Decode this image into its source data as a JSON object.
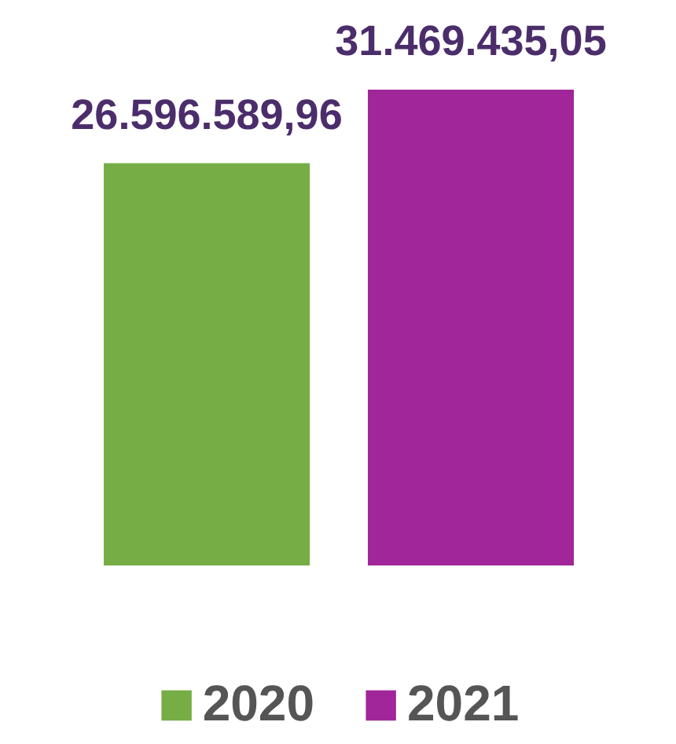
{
  "chart_data": {
    "type": "bar",
    "categories": [
      null
    ],
    "series": [
      {
        "name": "2020",
        "color": "#76ad45",
        "values": [
          26596589.96
        ],
        "value_labels": [
          "26.596.589,96"
        ]
      },
      {
        "name": "2021",
        "color": "#a0269a",
        "values": [
          31469435.05
        ],
        "value_labels": [
          "31.469.435,05"
        ]
      }
    ],
    "legend": "bottom",
    "tick_labels": false
  }
}
